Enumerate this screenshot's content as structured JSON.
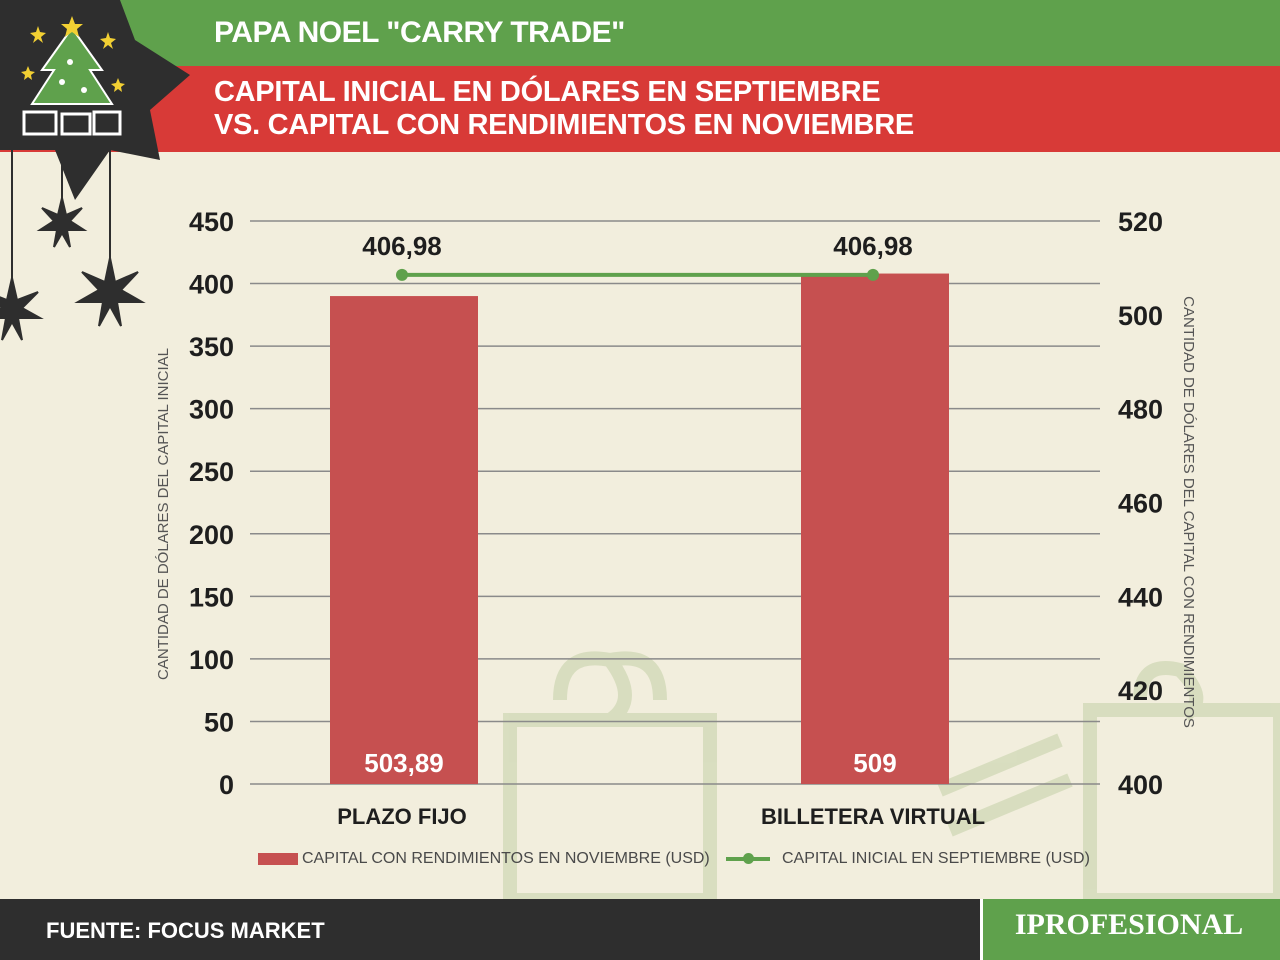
{
  "header": {
    "title": "PAPA NOEL \"CARRY TRADE\"",
    "subtitle_line1": "CAPITAL INICIAL EN DÓLARES EN SEPTIEMBRE",
    "subtitle_line2": "VS. CAPITAL CON RENDIMIENTOS EN NOVIEMBRE"
  },
  "decoration": {
    "icon_names": [
      "christmas-tree-icon",
      "gift-icon",
      "star-icon",
      "hanging-star-icon"
    ]
  },
  "chart_data": {
    "type": "bar",
    "categories": [
      "PLAZO FIJO",
      "BILLETERA VIRTUAL"
    ],
    "series": [
      {
        "name": "CAPITAL CON RENDIMIENTOS EN NOVIEMBRE (USD)",
        "type": "bar",
        "axis": "left",
        "values": [
          503.89,
          509
        ],
        "value_labels": [
          "503,89",
          "509"
        ],
        "plotted_heights": [
          390,
          408
        ],
        "color": "#c65050"
      },
      {
        "name": "CAPITAL INICIAL EN SEPTIEMBRE (USD)",
        "type": "line",
        "axis": "left",
        "values": [
          406.98,
          406.98
        ],
        "value_labels": [
          "406,98",
          "406,98"
        ],
        "color": "#5fa14c"
      }
    ],
    "y_left": {
      "label": "CANTIDAD DE DÓLARES DEL CAPITAL INICIAL",
      "range": [
        0,
        450
      ],
      "ticks": [
        "0",
        "50",
        "100",
        "150",
        "200",
        "250",
        "300",
        "350",
        "400",
        "450"
      ]
    },
    "y_right": {
      "label": "CANTIDAD DE DÓLARES DEL CAPITAL CON RENDIMIENTOS",
      "range": [
        400,
        520
      ],
      "ticks": [
        "400",
        "420",
        "440",
        "460",
        "480",
        "500",
        "520"
      ]
    },
    "grid": true,
    "legend_position": "bottom"
  },
  "footer": {
    "source": "FUENTE: FOCUS MARKET",
    "brand": "IPROFESIONAL"
  },
  "colors": {
    "background": "#f2eedd",
    "green": "#5fa14c",
    "red": "#d83a37",
    "bar": "#c65050",
    "footer": "#2e2e2e"
  }
}
